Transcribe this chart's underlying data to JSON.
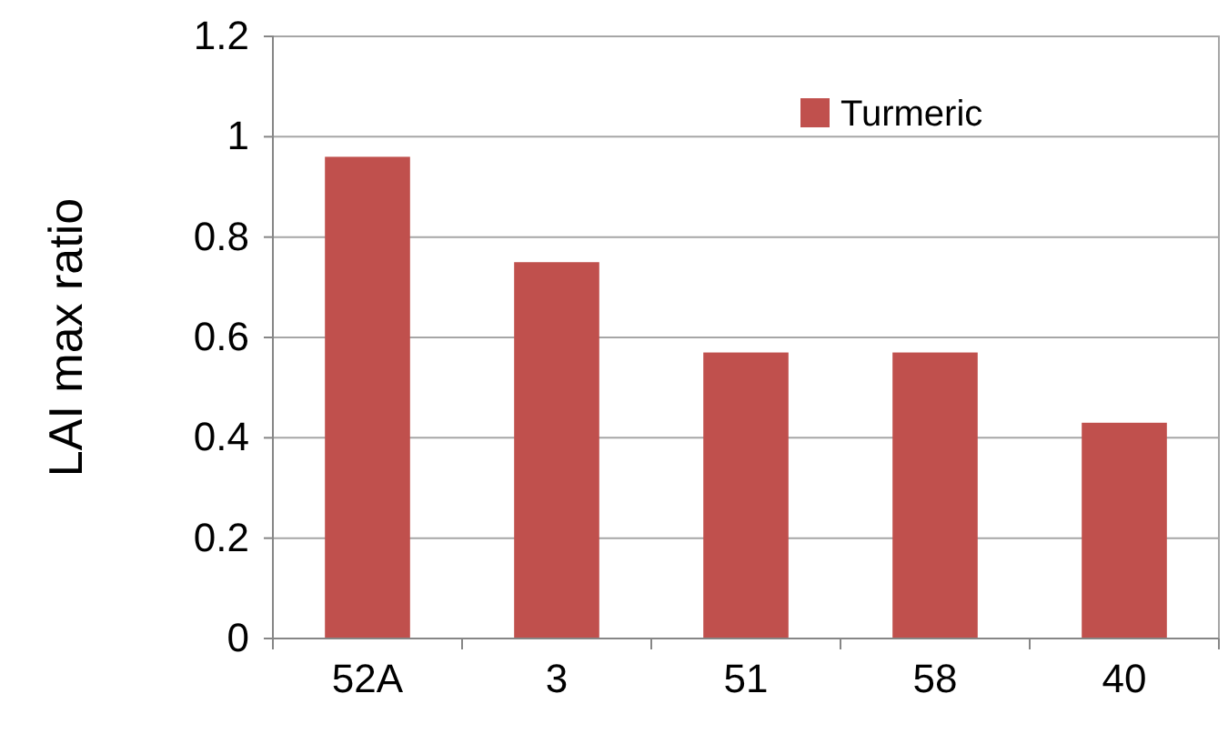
{
  "chart_data": {
    "type": "bar",
    "ylabel": "LAI max ratio",
    "categories": [
      "52A",
      "3",
      "51",
      "58",
      "40"
    ],
    "series": [
      {
        "name": "Turmeric",
        "color": "#c0504d",
        "values": [
          0.96,
          0.75,
          0.57,
          0.57,
          0.43
        ]
      }
    ],
    "ylim": [
      0,
      1.2
    ],
    "yticks": [
      0,
      0.2,
      0.4,
      0.6,
      0.8,
      1,
      1.2
    ],
    "grid": "y",
    "legend": "top right"
  }
}
